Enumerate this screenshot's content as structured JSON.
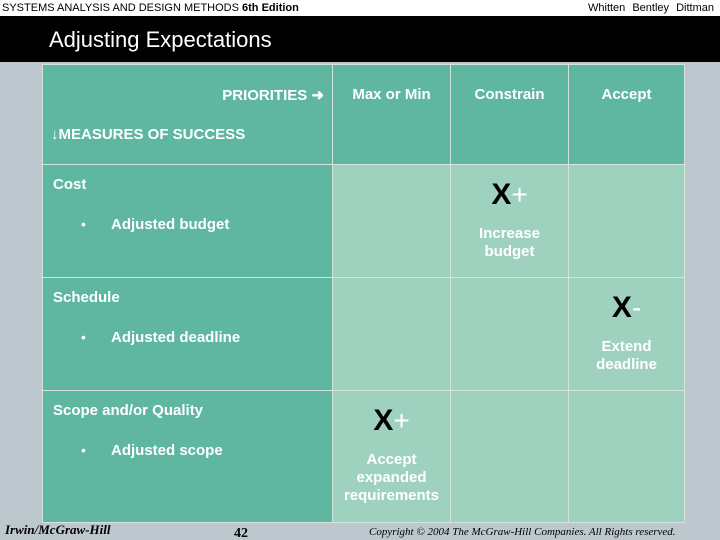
{
  "header": {
    "book_title": "SYSTEMS ANALYSIS AND DESIGN METHODS",
    "edition": "6th Edition",
    "authors": "Whitten  Bentley  Dittman"
  },
  "slide": {
    "title": "Adjusting Expectations"
  },
  "table": {
    "priorities_label": "PRIORITIES",
    "priorities_arrow": "➜",
    "measures_arrow": "↓",
    "measures_label": "MEASURES OF SUCCESS",
    "columns": [
      "Max or Min",
      "Constrain",
      "Accept"
    ],
    "rows": [
      {
        "category": "Cost",
        "bullet": "•",
        "item": "Adjusted budget",
        "mark": {
          "x": "X",
          "sign": "+",
          "line1": "Increase",
          "line2": "budget"
        }
      },
      {
        "category": "Schedule",
        "bullet": "•",
        "item": "Adjusted deadline",
        "mark": {
          "x": "X",
          "sign": "-",
          "line1": "Extend",
          "line2": "deadline"
        }
      },
      {
        "category": "Scope and/or Quality",
        "bullet": "•",
        "item": "Adjusted scope",
        "mark": {
          "x": "X",
          "sign": "+",
          "line1": "Accept",
          "line2": "expanded",
          "line3": "requirements"
        }
      }
    ]
  },
  "footer": {
    "publisher": "Irwin/McGraw-Hill",
    "page_number": "42",
    "copyright": "Copyright © 2004 The McGraw-Hill Companies. All Rights reserved."
  }
}
